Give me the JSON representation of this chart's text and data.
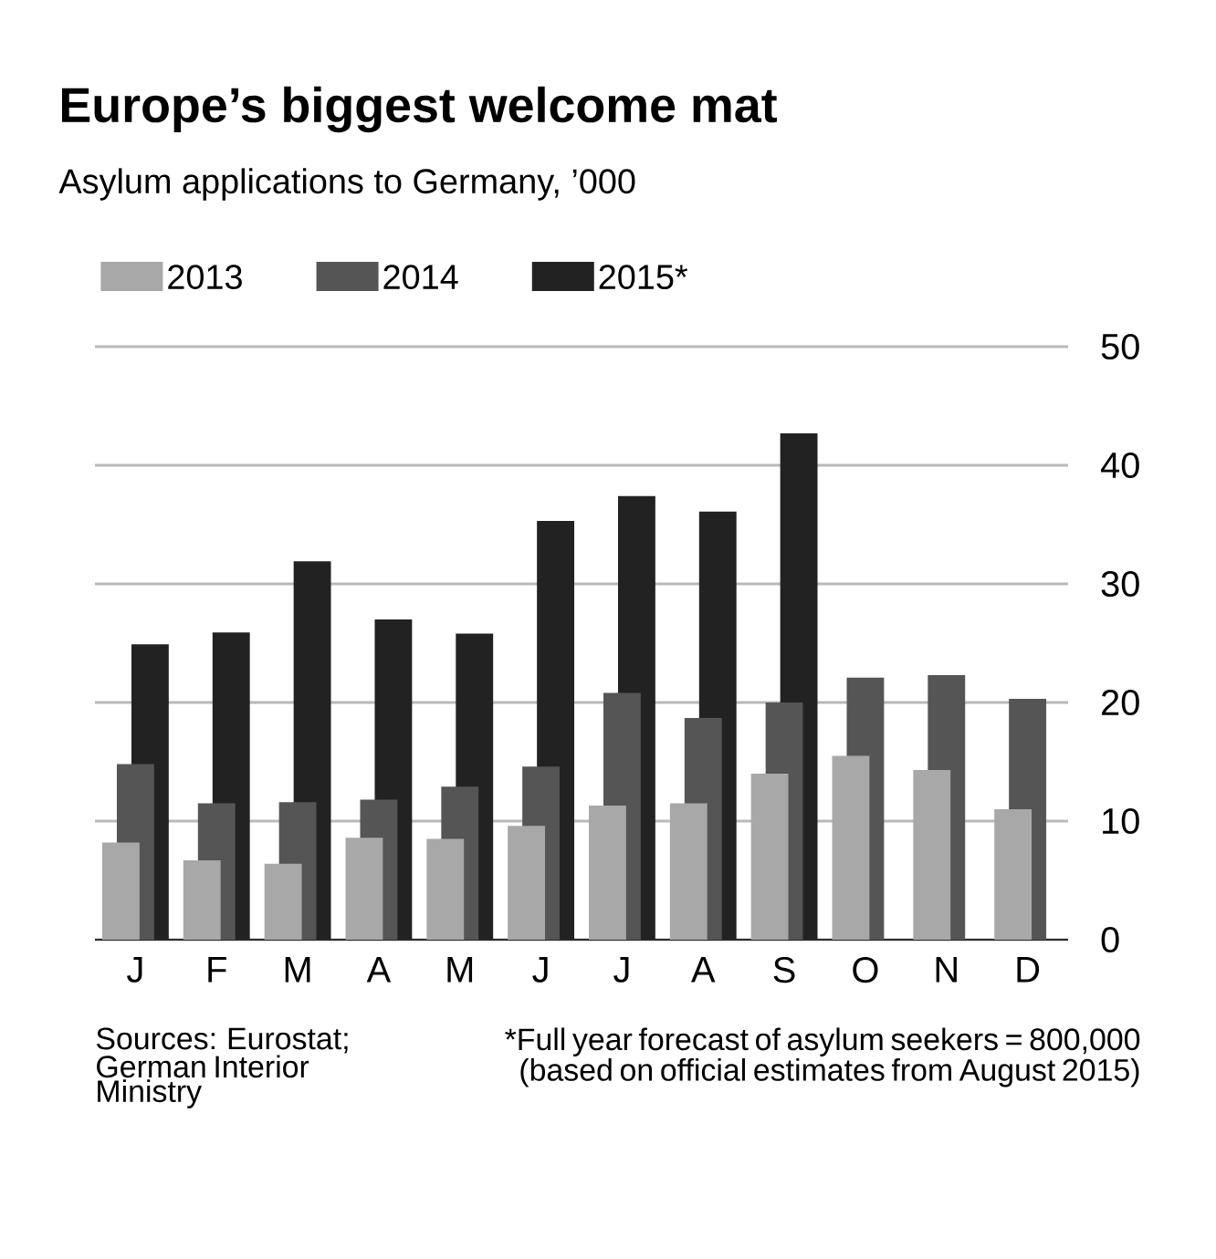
{
  "chart_data": {
    "type": "bar",
    "title": "Europe’s biggest welcome mat",
    "subtitle": "Asylum applications to Germany, ’000",
    "categories": [
      "J",
      "F",
      "M",
      "A",
      "M",
      "J",
      "J",
      "A",
      "S",
      "O",
      "N",
      "D"
    ],
    "series": [
      {
        "name": "2013",
        "color": "#a8a8a8",
        "values": [
          8.2,
          6.7,
          6.4,
          8.6,
          8.5,
          9.6,
          11.3,
          11.5,
          14.0,
          15.5,
          14.3,
          11.0
        ]
      },
      {
        "name": "2014",
        "color": "#555555",
        "values": [
          14.8,
          11.5,
          11.6,
          11.8,
          12.9,
          14.6,
          20.8,
          18.7,
          20.0,
          22.1,
          22.3,
          20.3
        ]
      },
      {
        "name": "2015*",
        "color": "#222222",
        "values": [
          24.9,
          25.9,
          31.9,
          27.0,
          25.8,
          35.3,
          37.4,
          36.1,
          42.7,
          null,
          null,
          null
        ]
      }
    ],
    "ylim": [
      0,
      50
    ],
    "yticks": [
      0,
      10,
      20,
      30,
      40,
      50
    ],
    "grid": "y",
    "legend": "top left",
    "annotations": [
      "Sources: Eurostat; German Interior Ministry",
      "*Full year forecast of asylum seekers = 800,000 (based on official estimates from August 2015)"
    ]
  }
}
